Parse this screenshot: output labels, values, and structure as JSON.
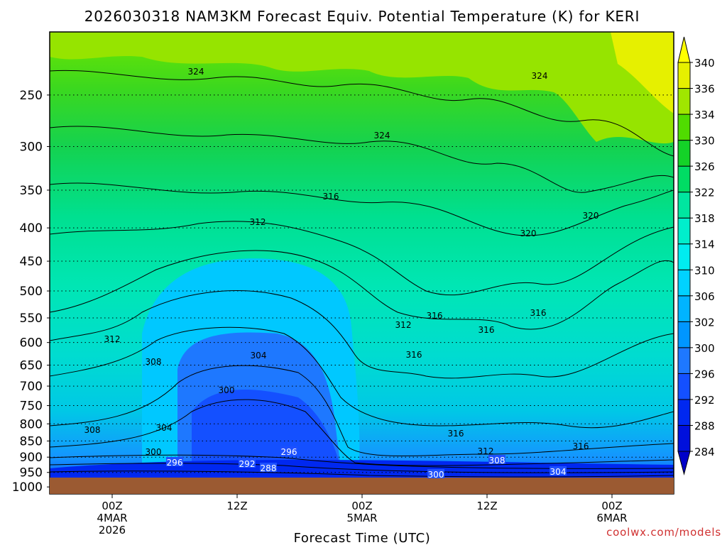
{
  "title": "2026030318 NAM3KM Forecast Equiv. Potential Temperature (K) for KERI",
  "xlabel": "Forecast Time (UTC)",
  "credit": "coolwx.com/models",
  "chart_data": {
    "type": "heatmap",
    "title": "2026030318 NAM3KM Forecast Equiv. Potential Temperature (K) for KERI",
    "xlabel": "Forecast Time (UTC)",
    "ylabel": "",
    "y_scale": "log",
    "ylim": [
      1025,
      200
    ],
    "x_ticks": [
      {
        "lines": [
          "00Z",
          "4MAR",
          "2026"
        ]
      },
      {
        "lines": [
          "12Z"
        ]
      },
      {
        "lines": [
          "00Z",
          "5MAR"
        ]
      },
      {
        "lines": [
          "12Z"
        ]
      },
      {
        "lines": [
          "00Z",
          "6MAR"
        ]
      }
    ],
    "y_ticks": [
      250,
      300,
      350,
      400,
      450,
      500,
      550,
      600,
      650,
      700,
      750,
      800,
      850,
      900,
      950,
      1000
    ],
    "y_tick_labels": [
      "250",
      "300",
      "350",
      "400",
      "450",
      "500",
      "550",
      "600",
      "650",
      "700",
      "750",
      "800",
      "850",
      "900",
      "950",
      "1000"
    ],
    "colorbar": {
      "levels": [
        284,
        288,
        292,
        296,
        300,
        302,
        306,
        310,
        314,
        318,
        322,
        326,
        330,
        334,
        336,
        340
      ],
      "labels": [
        "284",
        "288",
        "292",
        "296",
        "300",
        "302",
        "306",
        "310",
        "314",
        "318",
        "322",
        "326",
        "330",
        "334",
        "336",
        "340"
      ],
      "colors": [
        "#0000c8",
        "#0010dc",
        "#0028f0",
        "#1450ff",
        "#1e78ff",
        "#0096ff",
        "#00b4ff",
        "#00d2ff",
        "#00ecf0",
        "#00eecc",
        "#00e6a0",
        "#00dc64",
        "#14d228",
        "#50dc00",
        "#a0e600",
        "#e6f000",
        "#ffff00"
      ]
    },
    "contour_labels": [
      {
        "text": "324"
      },
      {
        "text": "324"
      },
      {
        "text": "324"
      },
      {
        "text": "316"
      },
      {
        "text": "312"
      },
      {
        "text": "320"
      },
      {
        "text": "320"
      },
      {
        "text": "316"
      },
      {
        "text": "316"
      },
      {
        "text": "312"
      },
      {
        "text": "316"
      },
      {
        "text": "312"
      },
      {
        "text": "308"
      },
      {
        "text": "304"
      },
      {
        "text": "316"
      },
      {
        "text": "300"
      },
      {
        "text": "308"
      },
      {
        "text": "304"
      },
      {
        "text": "316"
      },
      {
        "text": "316"
      },
      {
        "text": "312"
      },
      {
        "text": "300"
      },
      {
        "text": "296"
      },
      {
        "text": "308"
      },
      {
        "text": "296"
      },
      {
        "text": "292"
      },
      {
        "text": "288"
      },
      {
        "text": "300"
      },
      {
        "text": "304"
      }
    ],
    "grid": true,
    "ground_color": "#9b5a32"
  }
}
